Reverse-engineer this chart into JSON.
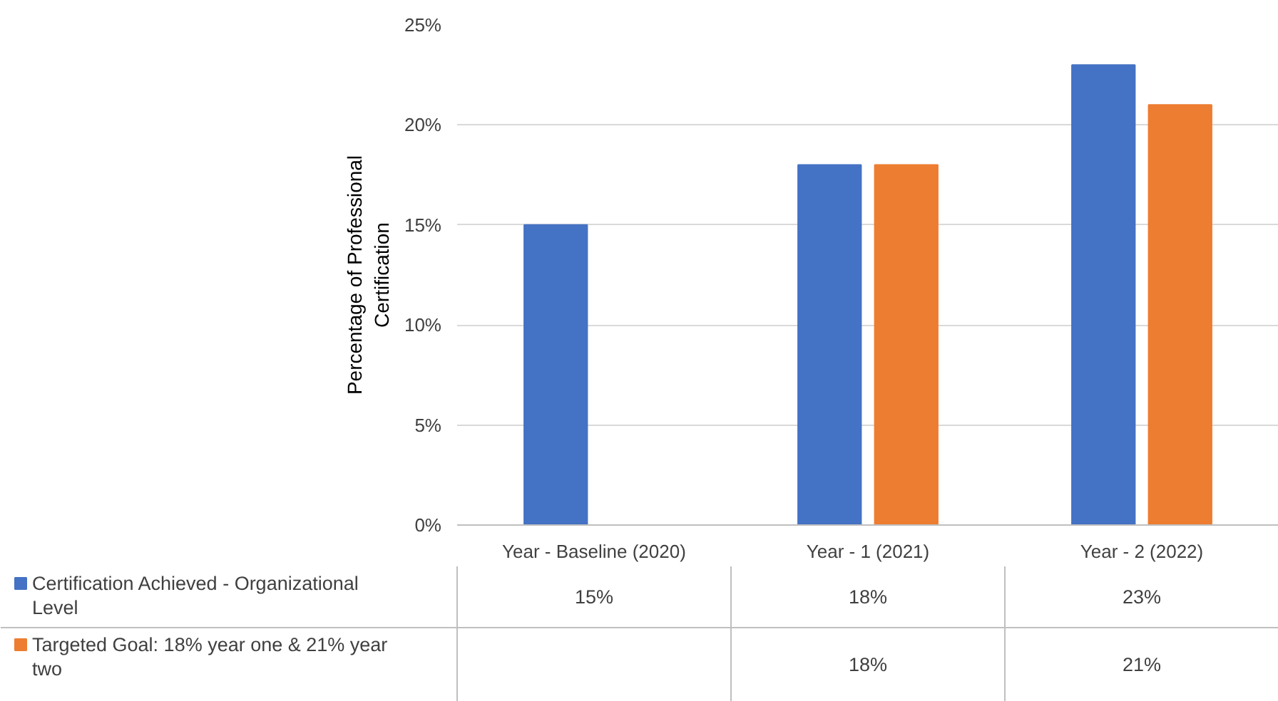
{
  "chart_data": {
    "type": "bar",
    "ylabel": "Percentage of Professional Certification",
    "categories": [
      "Year - Baseline (2020)",
      "Year - 1 (2021)",
      "Year - 2 (2022)"
    ],
    "series": [
      {
        "name": "Certification Achieved - Organizational Level",
        "color": "#4472c4",
        "values": [
          15,
          18,
          23
        ],
        "value_labels": [
          "15%",
          "18%",
          "23%"
        ]
      },
      {
        "name": "Targeted Goal: 18% year one & 21% year two",
        "color": "#ed7d31",
        "values": [
          null,
          18,
          21
        ],
        "value_labels": [
          null,
          "18%",
          "21%"
        ]
      }
    ],
    "ylim": [
      0,
      25
    ],
    "yticks": [
      {
        "value": 0,
        "label": "0%"
      },
      {
        "value": 5,
        "label": "5%"
      },
      {
        "value": 10,
        "label": "10%"
      },
      {
        "value": 15,
        "label": "15%"
      },
      {
        "value": 20,
        "label": "20%"
      },
      {
        "value": 25,
        "label": "25%"
      }
    ],
    "grid": "y",
    "legend": "bottom left"
  }
}
